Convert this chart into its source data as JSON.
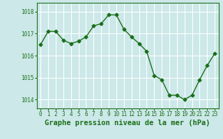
{
  "x": [
    0,
    1,
    2,
    3,
    4,
    5,
    6,
    7,
    8,
    9,
    10,
    11,
    12,
    13,
    14,
    15,
    16,
    17,
    18,
    19,
    20,
    21,
    22,
    23
  ],
  "y": [
    1016.5,
    1017.1,
    1017.1,
    1016.7,
    1016.55,
    1016.65,
    1016.85,
    1017.35,
    1017.45,
    1017.85,
    1017.85,
    1017.2,
    1016.85,
    1016.55,
    1016.2,
    1015.1,
    1014.9,
    1014.2,
    1014.2,
    1014.0,
    1014.2,
    1014.9,
    1015.55,
    1016.1
  ],
  "ylim": [
    1013.6,
    1018.4
  ],
  "yticks": [
    1014,
    1015,
    1016,
    1017,
    1018
  ],
  "xticks": [
    0,
    1,
    2,
    3,
    4,
    5,
    6,
    7,
    8,
    9,
    10,
    11,
    12,
    13,
    14,
    15,
    16,
    17,
    18,
    19,
    20,
    21,
    22,
    23
  ],
  "line_color": "#1a6e1a",
  "marker": "D",
  "marker_size": 2.5,
  "line_width": 1.0,
  "bg_color": "#cce8e8",
  "grid_color": "#ffffff",
  "xlabel": "Graphe pression niveau de la mer (hPa)",
  "xlabel_color": "#1a6e1a",
  "tick_color": "#1a6e1a",
  "tick_fontsize": 5.5,
  "xlabel_fontsize": 7.5,
  "border_color": "#1a6e1a"
}
